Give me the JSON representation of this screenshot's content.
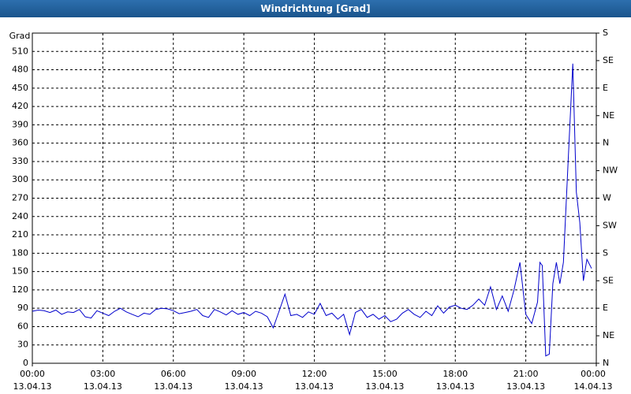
{
  "chart_data": {
    "type": "line",
    "title": "Windrichtung [Grad]",
    "y_label": "Grad",
    "x": [
      0,
      0.25,
      0.5,
      0.75,
      1,
      1.25,
      1.5,
      1.75,
      2,
      2.25,
      2.5,
      2.75,
      3,
      3.25,
      3.5,
      3.75,
      4,
      4.25,
      4.5,
      4.75,
      5,
      5.25,
      5.5,
      5.75,
      6,
      6.25,
      6.5,
      6.75,
      7,
      7.25,
      7.5,
      7.75,
      8,
      8.25,
      8.5,
      8.75,
      9,
      9.25,
      9.5,
      9.75,
      10,
      10.25,
      10.5,
      10.75,
      11,
      11.25,
      11.5,
      11.75,
      12,
      12.25,
      12.5,
      12.75,
      13,
      13.25,
      13.5,
      13.75,
      14,
      14.25,
      14.5,
      14.75,
      15,
      15.25,
      15.5,
      15.75,
      16,
      16.25,
      16.5,
      16.75,
      17,
      17.25,
      17.5,
      17.75,
      18,
      18.25,
      18.5,
      18.75,
      19,
      19.25,
      19.5,
      19.75,
      20,
      20.25,
      20.5,
      20.75,
      21,
      21.25,
      21.5,
      21.6,
      21.7,
      21.85,
      22,
      22.15,
      22.3,
      22.45,
      22.6,
      22.8,
      23,
      23.15,
      23.3,
      23.45,
      23.6,
      23.8
    ],
    "series": [
      {
        "name": "Windrichtung",
        "color": "#0000cc",
        "values": [
          85,
          87,
          86,
          83,
          87,
          80,
          84,
          83,
          88,
          76,
          74,
          86,
          82,
          78,
          85,
          90,
          84,
          80,
          76,
          82,
          80,
          88,
          90,
          89,
          86,
          81,
          83,
          85,
          88,
          78,
          75,
          88,
          84,
          79,
          86,
          80,
          83,
          78,
          85,
          82,
          76,
          58,
          85,
          113,
          78,
          80,
          75,
          84,
          80,
          98,
          78,
          82,
          72,
          80,
          47,
          83,
          88,
          75,
          80,
          72,
          78,
          68,
          72,
          82,
          88,
          80,
          75,
          85,
          78,
          94,
          82,
          92,
          95,
          90,
          88,
          95,
          105,
          95,
          125,
          88,
          110,
          85,
          120,
          165,
          80,
          65,
          100,
          165,
          160,
          12,
          15,
          130,
          165,
          130,
          165,
          330,
          490,
          280,
          230,
          135,
          170,
          155
        ]
      }
    ],
    "xlim": [
      0,
      24
    ],
    "xticks": [
      {
        "value": 0,
        "label": "00:00\n13.04.13"
      },
      {
        "value": 3,
        "label": "03:00\n13.04.13"
      },
      {
        "value": 6,
        "label": "06:00\n13.04.13"
      },
      {
        "value": 9,
        "label": "09:00\n13.04.13"
      },
      {
        "value": 12,
        "label": "12:00\n13.04.13"
      },
      {
        "value": 15,
        "label": "15:00\n13.04.13"
      },
      {
        "value": 18,
        "label": "18:00\n13.04.13"
      },
      {
        "value": 21,
        "label": "21:00\n13.04.13"
      },
      {
        "value": 24,
        "label": "00:00\n14.04.13"
      }
    ],
    "ylim": [
      0,
      540
    ],
    "yticks": [
      0,
      30,
      60,
      90,
      120,
      150,
      180,
      210,
      240,
      270,
      300,
      330,
      360,
      390,
      420,
      450,
      480,
      510
    ],
    "y2lim": [
      0,
      540
    ],
    "y2ticks": [
      {
        "value": 0,
        "label": "N"
      },
      {
        "value": 45,
        "label": "NE"
      },
      {
        "value": 90,
        "label": "E"
      },
      {
        "value": 135,
        "label": "SE"
      },
      {
        "value": 180,
        "label": "S"
      },
      {
        "value": 225,
        "label": "SW"
      },
      {
        "value": 270,
        "label": "W"
      },
      {
        "value": 315,
        "label": "NW"
      },
      {
        "value": 360,
        "label": "N"
      },
      {
        "value": 405,
        "label": "NE"
      },
      {
        "value": 450,
        "label": "E"
      },
      {
        "value": 495,
        "label": "SE"
      },
      {
        "value": 540,
        "label": "S"
      }
    ],
    "grid": true
  }
}
